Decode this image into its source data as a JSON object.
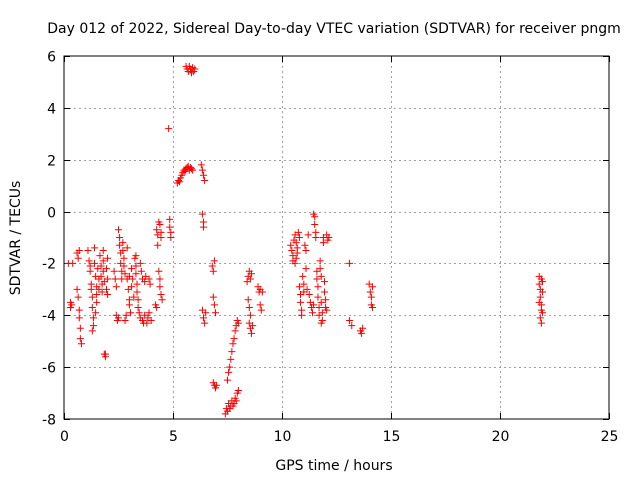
{
  "chart_data": {
    "type": "scatter",
    "title": "Day 012 of 2022, Sidereal Day-to-day VTEC variation (SDTVAR) for receiver pngm",
    "xlabel": "GPS time / hours",
    "ylabel": "SDTVAR / TECUs",
    "xlim": [
      0,
      25
    ],
    "ylim": [
      -8,
      6
    ],
    "xticks": [
      0,
      5,
      10,
      15,
      20,
      25
    ],
    "yticks": [
      -8,
      -6,
      -4,
      -2,
      0,
      2,
      4,
      6
    ],
    "grid": true,
    "marker": "+",
    "marker_color": "#ff0000",
    "series": [
      {
        "name": "SDTVAR",
        "points": [
          [
            0.2,
            -2.0
          ],
          [
            0.3,
            -3.5
          ],
          [
            0.3,
            -3.7
          ],
          [
            0.35,
            -3.6
          ],
          [
            0.4,
            -2.0
          ],
          [
            0.6,
            -1.6
          ],
          [
            0.65,
            -1.8
          ],
          [
            0.6,
            -3.0
          ],
          [
            0.65,
            -3.3
          ],
          [
            0.7,
            -3.8
          ],
          [
            0.7,
            -4.1
          ],
          [
            0.75,
            -4.5
          ],
          [
            0.75,
            -4.9
          ],
          [
            0.8,
            -5.1
          ],
          [
            0.7,
            -1.5
          ],
          [
            1.1,
            -1.5
          ],
          [
            1.15,
            -1.9
          ],
          [
            1.2,
            -2.1
          ],
          [
            1.2,
            -2.3
          ],
          [
            1.25,
            -2.8
          ],
          [
            1.25,
            -3.0
          ],
          [
            1.3,
            -3.3
          ],
          [
            1.3,
            -3.7
          ],
          [
            1.35,
            -4.1
          ],
          [
            1.35,
            -4.4
          ],
          [
            1.3,
            -4.6
          ],
          [
            1.4,
            -1.4
          ],
          [
            1.4,
            -2.0
          ],
          [
            1.45,
            -2.5
          ],
          [
            1.5,
            -2.9
          ],
          [
            1.5,
            -3.2
          ],
          [
            1.55,
            -2.2
          ],
          [
            1.6,
            -2.6
          ],
          [
            1.6,
            -3.0
          ],
          [
            1.65,
            -1.7
          ],
          [
            1.7,
            -2.1
          ],
          [
            1.7,
            -2.5
          ],
          [
            1.75,
            -2.8
          ],
          [
            1.75,
            -3.1
          ],
          [
            1.8,
            -1.5
          ],
          [
            1.8,
            -1.9
          ],
          [
            1.8,
            -2.3
          ],
          [
            1.85,
            -2.7
          ],
          [
            1.85,
            -5.5
          ],
          [
            1.9,
            -5.6
          ],
          [
            1.9,
            -5.5
          ],
          [
            1.95,
            -2.2
          ],
          [
            1.95,
            -3.0
          ],
          [
            2.0,
            -1.8
          ],
          [
            2.0,
            -2.6
          ],
          [
            2.0,
            -3.2
          ],
          [
            1.5,
            -3.5
          ],
          [
            1.45,
            -3.9
          ],
          [
            2.3,
            -2.3
          ],
          [
            2.35,
            -2.6
          ],
          [
            2.4,
            -2.9
          ],
          [
            2.4,
            -4.0
          ],
          [
            2.45,
            -4.2
          ],
          [
            2.5,
            -4.1
          ],
          [
            2.5,
            -0.7
          ],
          [
            2.55,
            -1.0
          ],
          [
            2.55,
            -1.3
          ],
          [
            2.6,
            -1.6
          ],
          [
            2.6,
            -2.0
          ],
          [
            2.65,
            -2.3
          ],
          [
            2.65,
            -2.6
          ],
          [
            2.7,
            -1.2
          ],
          [
            2.7,
            -1.5
          ],
          [
            2.75,
            -1.8
          ],
          [
            2.75,
            -2.1
          ],
          [
            2.8,
            -2.4
          ],
          [
            2.8,
            -4.2
          ],
          [
            2.85,
            -4.0
          ],
          [
            2.9,
            -1.4
          ],
          [
            2.9,
            -2.6
          ],
          [
            2.95,
            -3.0
          ],
          [
            3.0,
            -3.4
          ],
          [
            3.0,
            -3.6
          ],
          [
            3.05,
            -3.9
          ],
          [
            3.1,
            -2.2
          ],
          [
            3.1,
            -2.9
          ],
          [
            3.15,
            -2.6
          ],
          [
            3.2,
            -3.3
          ],
          [
            3.25,
            -1.8
          ],
          [
            3.3,
            -2.1
          ],
          [
            3.3,
            -2.4
          ],
          [
            3.35,
            -2.8
          ],
          [
            3.35,
            -3.1
          ],
          [
            3.4,
            -3.4
          ],
          [
            3.4,
            -3.7
          ],
          [
            3.45,
            -3.9
          ],
          [
            3.5,
            -4.1
          ],
          [
            3.5,
            -2.0
          ],
          [
            3.55,
            -2.3
          ],
          [
            3.6,
            -2.6
          ],
          [
            3.6,
            -4.2
          ],
          [
            3.65,
            -4.3
          ],
          [
            3.7,
            -4.0
          ],
          [
            3.7,
            -2.7
          ],
          [
            3.75,
            -2.5
          ],
          [
            3.8,
            -4.3
          ],
          [
            3.85,
            -4.1
          ],
          [
            3.9,
            -3.9
          ],
          [
            3.9,
            -2.6
          ],
          [
            3.95,
            -2.8
          ],
          [
            4.0,
            -4.2
          ],
          [
            3.3,
            -1.7
          ],
          [
            3.0,
            -2.5
          ],
          [
            4.25,
            -0.7
          ],
          [
            4.3,
            -0.9
          ],
          [
            4.3,
            -1.3
          ],
          [
            4.35,
            -0.4
          ],
          [
            4.35,
            -2.3
          ],
          [
            4.4,
            -2.6
          ],
          [
            4.4,
            -2.9
          ],
          [
            4.45,
            -0.8
          ],
          [
            4.45,
            -3.2
          ],
          [
            4.5,
            -3.4
          ],
          [
            4.2,
            -3.6
          ],
          [
            4.25,
            -3.7
          ],
          [
            4.45,
            -1.0
          ],
          [
            4.4,
            -0.5
          ],
          [
            4.8,
            3.2
          ],
          [
            4.85,
            -0.3
          ],
          [
            4.85,
            -0.6
          ],
          [
            4.9,
            -0.8
          ],
          [
            4.9,
            -1.0
          ],
          [
            5.2,
            1.1
          ],
          [
            5.25,
            1.2
          ],
          [
            5.3,
            1.15
          ],
          [
            5.35,
            1.3
          ],
          [
            5.4,
            1.4
          ],
          [
            5.45,
            1.5
          ],
          [
            5.5,
            1.6
          ],
          [
            5.55,
            1.55
          ],
          [
            5.6,
            1.65
          ],
          [
            5.65,
            1.7
          ],
          [
            5.7,
            1.75
          ],
          [
            5.75,
            1.6
          ],
          [
            5.8,
            1.7
          ],
          [
            5.85,
            1.65
          ],
          [
            5.9,
            1.6
          ],
          [
            5.6,
            5.6
          ],
          [
            5.65,
            5.5
          ],
          [
            5.7,
            5.4
          ],
          [
            5.75,
            5.6
          ],
          [
            5.8,
            5.5
          ],
          [
            5.85,
            5.35
          ],
          [
            5.9,
            5.55
          ],
          [
            5.95,
            5.4
          ],
          [
            6.0,
            5.5
          ],
          [
            6.3,
            1.8
          ],
          [
            6.35,
            1.6
          ],
          [
            6.4,
            1.4
          ],
          [
            6.45,
            1.2
          ],
          [
            6.35,
            -0.1
          ],
          [
            6.4,
            -0.4
          ],
          [
            6.4,
            -0.6
          ],
          [
            6.35,
            -3.8
          ],
          [
            6.4,
            -4.1
          ],
          [
            6.45,
            -4.3
          ],
          [
            6.5,
            -3.9
          ],
          [
            6.8,
            -2.1
          ],
          [
            6.85,
            -2.3
          ],
          [
            6.9,
            -1.9
          ],
          [
            6.85,
            -3.3
          ],
          [
            6.9,
            -3.6
          ],
          [
            6.95,
            -3.9
          ],
          [
            6.85,
            -6.6
          ],
          [
            6.9,
            -6.7
          ],
          [
            6.95,
            -6.8
          ],
          [
            7.0,
            -6.7
          ],
          [
            7.4,
            -7.8
          ],
          [
            7.45,
            -7.6
          ],
          [
            7.5,
            -7.7
          ],
          [
            7.55,
            -7.4
          ],
          [
            7.6,
            -7.6
          ],
          [
            7.65,
            -7.5
          ],
          [
            7.7,
            -7.3
          ],
          [
            7.75,
            -7.5
          ],
          [
            7.8,
            -7.4
          ],
          [
            7.85,
            -7.2
          ],
          [
            7.9,
            -7.3
          ],
          [
            7.95,
            -7.0
          ],
          [
            8.0,
            -6.9
          ],
          [
            7.5,
            -6.5
          ],
          [
            7.55,
            -6.2
          ],
          [
            7.6,
            -6.0
          ],
          [
            7.65,
            -5.7
          ],
          [
            7.7,
            -5.4
          ],
          [
            7.75,
            -5.1
          ],
          [
            7.8,
            -4.9
          ],
          [
            7.85,
            -4.6
          ],
          [
            7.9,
            -4.4
          ],
          [
            7.95,
            -4.2
          ],
          [
            8.0,
            -4.3
          ],
          [
            8.4,
            -2.7
          ],
          [
            8.45,
            -2.5
          ],
          [
            8.5,
            -2.3
          ],
          [
            8.55,
            -2.6
          ],
          [
            8.6,
            -2.4
          ],
          [
            8.45,
            -3.4
          ],
          [
            8.5,
            -3.7
          ],
          [
            8.55,
            -4.0
          ],
          [
            8.5,
            -4.3
          ],
          [
            8.55,
            -4.5
          ],
          [
            8.6,
            -4.7
          ],
          [
            8.65,
            -4.4
          ],
          [
            8.9,
            -2.9
          ],
          [
            8.95,
            -3.1
          ],
          [
            9.0,
            -3.0
          ],
          [
            9.0,
            -3.6
          ],
          [
            9.05,
            -3.8
          ],
          [
            9.1,
            -3.1
          ],
          [
            10.4,
            -1.3
          ],
          [
            10.45,
            -1.5
          ],
          [
            10.5,
            -1.7
          ],
          [
            10.5,
            -1.9
          ],
          [
            10.55,
            -1.1
          ],
          [
            10.6,
            -0.9
          ],
          [
            10.65,
            -1.2
          ],
          [
            10.7,
            -1.4
          ],
          [
            10.7,
            -1.6
          ],
          [
            10.75,
            -0.8
          ],
          [
            10.8,
            -1.0
          ],
          [
            10.8,
            -2.9
          ],
          [
            10.85,
            -3.2
          ],
          [
            10.85,
            -3.5
          ],
          [
            10.9,
            -3.8
          ],
          [
            10.9,
            -4.0
          ],
          [
            10.95,
            -2.5
          ],
          [
            11.0,
            -2.8
          ],
          [
            11.0,
            -3.1
          ],
          [
            11.05,
            -1.3
          ],
          [
            11.1,
            -1.5
          ],
          [
            11.1,
            -2.2
          ],
          [
            11.15,
            -3.0
          ],
          [
            10.6,
            -2.0
          ],
          [
            10.65,
            -1.8
          ],
          [
            11.2,
            -0.9
          ],
          [
            11.25,
            -3.2
          ],
          [
            11.3,
            -3.5
          ],
          [
            11.35,
            -3.7
          ],
          [
            11.4,
            -3.9
          ],
          [
            11.45,
            -3.6
          ],
          [
            11.5,
            -0.2
          ],
          [
            11.5,
            -0.5
          ],
          [
            11.55,
            -0.8
          ],
          [
            11.55,
            -1.0
          ],
          [
            11.6,
            -2.3
          ],
          [
            11.6,
            -2.6
          ],
          [
            11.65,
            -2.9
          ],
          [
            11.65,
            -3.3
          ],
          [
            11.7,
            -3.7
          ],
          [
            11.7,
            -4.0
          ],
          [
            11.75,
            -1.9
          ],
          [
            11.75,
            -2.2
          ],
          [
            11.8,
            -2.5
          ],
          [
            11.8,
            -3.5
          ],
          [
            11.85,
            -3.9
          ],
          [
            11.85,
            -4.2
          ],
          [
            11.9,
            -1.0
          ],
          [
            11.9,
            -1.2
          ],
          [
            11.95,
            -2.7
          ],
          [
            11.95,
            -3.1
          ],
          [
            12.0,
            -3.4
          ],
          [
            12.0,
            -3.7
          ],
          [
            12.05,
            -0.9
          ],
          [
            12.1,
            -1.1
          ],
          [
            12.15,
            -1.0
          ],
          [
            11.45,
            -0.1
          ],
          [
            11.8,
            -4.3
          ],
          [
            12.05,
            -3.8
          ],
          [
            13.1,
            -2.0
          ],
          [
            13.1,
            -4.2
          ],
          [
            13.2,
            -4.4
          ],
          [
            13.6,
            -4.6
          ],
          [
            13.65,
            -4.7
          ],
          [
            13.7,
            -4.5
          ],
          [
            14.0,
            -2.8
          ],
          [
            14.05,
            -3.1
          ],
          [
            14.1,
            -3.3
          ],
          [
            14.1,
            -3.6
          ],
          [
            14.15,
            -3.7
          ],
          [
            14.15,
            -2.9
          ],
          [
            21.8,
            -2.5
          ],
          [
            21.8,
            -2.8
          ],
          [
            21.85,
            -3.0
          ],
          [
            21.85,
            -3.3
          ],
          [
            21.9,
            -3.6
          ],
          [
            21.9,
            -3.8
          ],
          [
            21.85,
            -4.1
          ],
          [
            21.9,
            -4.3
          ],
          [
            21.95,
            -2.7
          ],
          [
            21.95,
            -3.1
          ],
          [
            21.8,
            -3.5
          ],
          [
            21.95,
            -3.9
          ],
          [
            21.9,
            -2.6
          ]
        ]
      }
    ]
  }
}
